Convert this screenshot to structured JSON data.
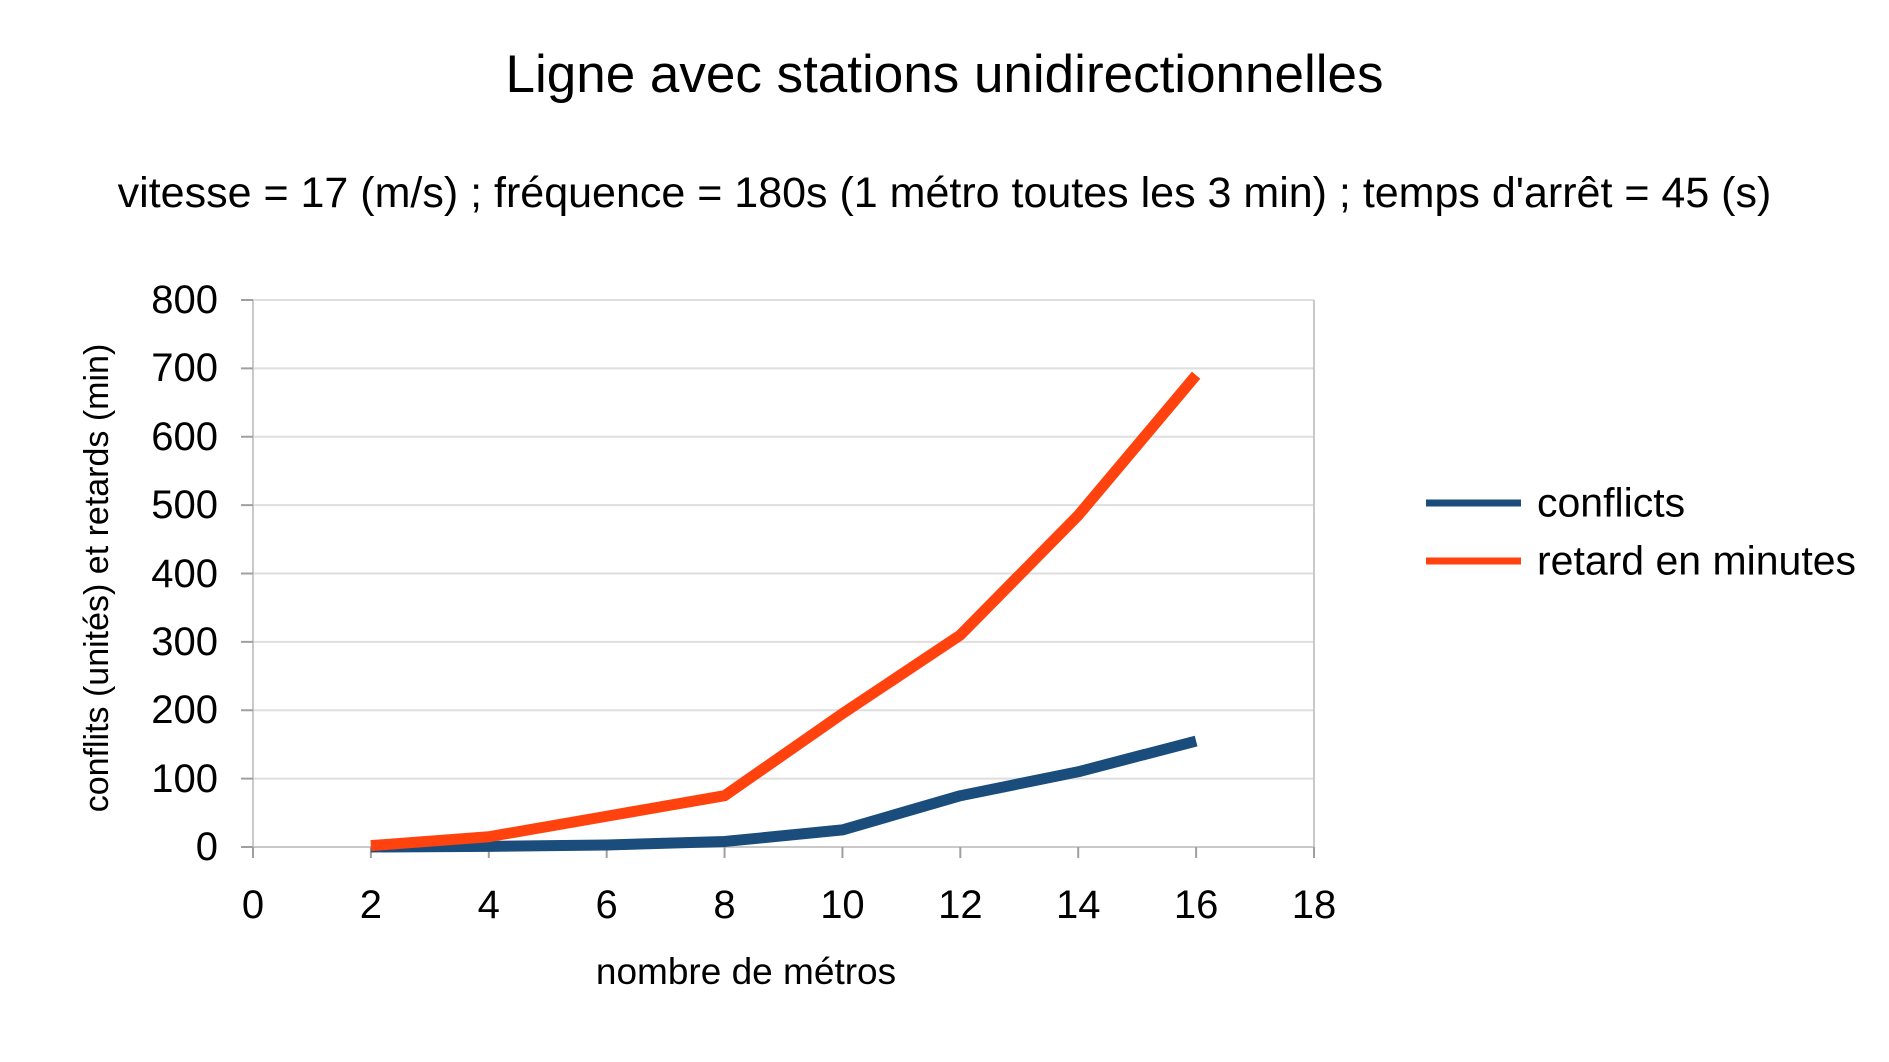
{
  "title": "Ligne avec stations unidirectionnelles",
  "subtitle": "vitesse = 17 (m/s) ; fréquence = 180s (1 métro toutes les 3 min) ; temps d'arrêt = 45 (s)",
  "chart_data": {
    "type": "line",
    "x": [
      2,
      4,
      6,
      8,
      10,
      12,
      14,
      16
    ],
    "series": [
      {
        "name": "conflicts",
        "color": "#1A4D7C",
        "values": [
          0,
          1,
          3,
          8,
          25,
          75,
          110,
          155
        ]
      },
      {
        "name": "retard en minutes",
        "color": "#FF420E",
        "values": [
          2,
          15,
          45,
          75,
          195,
          310,
          485,
          690
        ]
      }
    ],
    "xlabel": "nombre de métros",
    "ylabel": "conflits (unités) et retards (min)",
    "xlim": [
      0,
      18
    ],
    "ylim": [
      0,
      800
    ],
    "x_ticks": [
      0,
      2,
      4,
      6,
      8,
      10,
      12,
      14,
      16,
      18
    ],
    "y_ticks": [
      0,
      100,
      200,
      300,
      400,
      500,
      600,
      700,
      800
    ],
    "grid": "horizontal",
    "legend_position": "right",
    "colors": {
      "gridline": "#dedede",
      "frame": "#c9c9c9",
      "tick": "#9f9f9f",
      "text": "#000000",
      "background": "#ffffff"
    }
  }
}
